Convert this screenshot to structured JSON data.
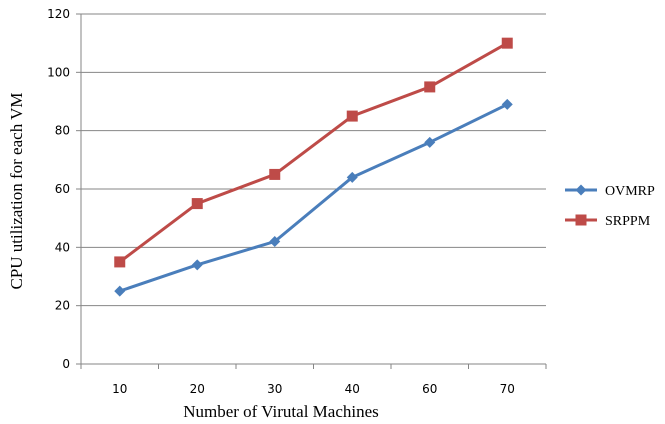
{
  "chart_data": {
    "type": "line",
    "categories": [
      "10",
      "20",
      "30",
      "40",
      "60",
      "70"
    ],
    "series": [
      {
        "name": "OVMRP",
        "values": [
          25,
          34,
          42,
          64,
          76,
          89
        ],
        "color": "#4a7ebb",
        "marker": "diamond"
      },
      {
        "name": "SRPPM",
        "values": [
          35,
          55,
          65,
          85,
          95,
          110
        ],
        "color": "#be4b48",
        "marker": "square"
      }
    ],
    "xlabel": "Number of Virutal Machines",
    "ylabel": "CPU utilization for each VM",
    "ylim": [
      0,
      120
    ],
    "yticks": [
      0,
      20,
      40,
      60,
      80,
      100,
      120
    ],
    "grid": "horizontal",
    "legend": "right"
  }
}
